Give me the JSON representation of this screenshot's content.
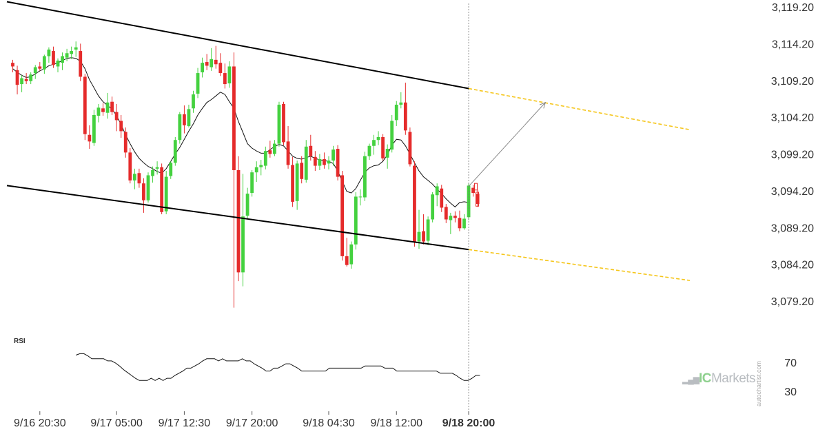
{
  "chart_data": {
    "type": "candlestick",
    "price_axis": {
      "ticks": [
        "3,119.20",
        "3,114.20",
        "3,109.20",
        "3,104.20",
        "3,099.20",
        "3,094.20",
        "3,089.20",
        "3,084.20",
        "3,079.20"
      ],
      "ylim": [
        3074.7,
        3120.2
      ]
    },
    "time_axis": {
      "ticks": [
        {
          "label": "9/16 20:30",
          "index": 6,
          "bold": false
        },
        {
          "label": "9/17 05:00",
          "index": 23,
          "bold": false
        },
        {
          "label": "9/17 12:30",
          "index": 38,
          "bold": false
        },
        {
          "label": "9/17 20:00",
          "index": 53,
          "bold": false
        },
        {
          "label": "9/18 04:30",
          "index": 70,
          "bold": false
        },
        {
          "label": "9/18 12:00",
          "index": 85,
          "bold": false
        },
        {
          "label": "9/18 20:00",
          "index": 101,
          "bold": true
        }
      ]
    },
    "colors": {
      "up": "#44d13f",
      "down": "#e52b2b",
      "ma": "#111111",
      "channel": "#000000",
      "projection": "#f5c518",
      "arrow": "#888888",
      "rsi": "#111111",
      "marker": "#888888"
    },
    "candles": [
      [
        3111.6,
        3112.0,
        3110.3,
        3111.1
      ],
      [
        3110.6,
        3111.2,
        3107.3,
        3108.6
      ],
      [
        3108.7,
        3109.9,
        3107.6,
        3109.5
      ],
      [
        3109.4,
        3110.2,
        3108.7,
        3109.1
      ],
      [
        3109.1,
        3110.3,
        3108.7,
        3110.0
      ],
      [
        3110.2,
        3111.3,
        3109.4,
        3111.0
      ],
      [
        3111.1,
        3111.7,
        3110.5,
        3110.8
      ],
      [
        3110.7,
        3112.7,
        3110.1,
        3112.5
      ],
      [
        3112.5,
        3113.7,
        3111.6,
        3113.4
      ],
      [
        3113.2,
        3113.8,
        3110.9,
        3111.3
      ],
      [
        3111.1,
        3112.2,
        3110.3,
        3111.9
      ],
      [
        3111.6,
        3113.0,
        3110.6,
        3112.5
      ],
      [
        3112.3,
        3113.5,
        3111.8,
        3112.9
      ],
      [
        3112.8,
        3113.8,
        3112.1,
        3113.2
      ],
      [
        3113.4,
        3114.5,
        3112.4,
        3113.7
      ],
      [
        3113.2,
        3114.2,
        3109.1,
        3109.7
      ],
      [
        3109.7,
        3110.1,
        3101.1,
        3101.9
      ],
      [
        3101.8,
        3103.1,
        3099.9,
        3100.9
      ],
      [
        3100.7,
        3105.2,
        3100.3,
        3104.5
      ],
      [
        3104.4,
        3106.0,
        3103.5,
        3105.5
      ],
      [
        3105.4,
        3106.1,
        3104.4,
        3104.9
      ],
      [
        3104.8,
        3107.5,
        3104.0,
        3106.2
      ],
      [
        3106.3,
        3107.0,
        3104.5,
        3104.9
      ],
      [
        3104.9,
        3106.0,
        3102.3,
        3103.8
      ],
      [
        3103.7,
        3104.5,
        3101.4,
        3102.3
      ],
      [
        3102.2,
        3102.8,
        3098.7,
        3099.4
      ],
      [
        3099.4,
        3100.0,
        3095.2,
        3095.6
      ],
      [
        3095.6,
        3097.2,
        3094.4,
        3096.5
      ],
      [
        3096.6,
        3097.2,
        3094.6,
        3095.2
      ],
      [
        3095.2,
        3095.9,
        3091.2,
        3092.9
      ],
      [
        3092.9,
        3096.7,
        3092.6,
        3096.3
      ],
      [
        3096.2,
        3097.5,
        3095.3,
        3097.0
      ],
      [
        3097.2,
        3098.2,
        3096.4,
        3097.4
      ],
      [
        3097.4,
        3097.9,
        3091.0,
        3091.3
      ],
      [
        3091.4,
        3096.9,
        3091.0,
        3096.1
      ],
      [
        3096.2,
        3098.2,
        3095.8,
        3098.0
      ],
      [
        3098.0,
        3101.5,
        3097.6,
        3101.1
      ],
      [
        3101.1,
        3104.9,
        3100.6,
        3104.6
      ],
      [
        3104.6,
        3105.8,
        3102.0,
        3103.1
      ],
      [
        3103.0,
        3105.9,
        3102.8,
        3105.3
      ],
      [
        3105.4,
        3107.8,
        3104.8,
        3107.3
      ],
      [
        3107.4,
        3110.9,
        3106.8,
        3110.2
      ],
      [
        3110.3,
        3112.3,
        3109.6,
        3111.6
      ],
      [
        3111.7,
        3112.8,
        3110.6,
        3111.2
      ],
      [
        3111.0,
        3113.6,
        3110.5,
        3112.1
      ],
      [
        3112.0,
        3113.9,
        3110.8,
        3111.4
      ],
      [
        3111.6,
        3112.9,
        3109.8,
        3110.2
      ],
      [
        3110.2,
        3111.5,
        3108.1,
        3108.7
      ],
      [
        3108.8,
        3111.8,
        3108.2,
        3111.1
      ],
      [
        3111.1,
        3113.0,
        3078.3,
        3097.0
      ],
      [
        3097.0,
        3098.9,
        3081.9,
        3083.1
      ],
      [
        3083.1,
        3096.5,
        3081.2,
        3090.7
      ],
      [
        3090.8,
        3094.6,
        3090.4,
        3093.8
      ],
      [
        3093.9,
        3097.0,
        3093.4,
        3096.7
      ],
      [
        3096.7,
        3098.2,
        3095.4,
        3097.4
      ],
      [
        3097.4,
        3098.4,
        3096.3,
        3097.7
      ],
      [
        3097.6,
        3100.2,
        3097.1,
        3099.6
      ],
      [
        3099.7,
        3101.0,
        3098.7,
        3099.2
      ],
      [
        3099.2,
        3101.1,
        3098.9,
        3100.6
      ],
      [
        3100.6,
        3106.3,
        3100.2,
        3105.9
      ],
      [
        3106.0,
        3106.3,
        3100.4,
        3100.8
      ],
      [
        3100.9,
        3103.0,
        3097.2,
        3097.7
      ],
      [
        3097.7,
        3098.8,
        3092.0,
        3092.7
      ],
      [
        3092.8,
        3098.3,
        3091.6,
        3097.9
      ],
      [
        3098.0,
        3098.9,
        3095.2,
        3095.8
      ],
      [
        3095.7,
        3101.1,
        3095.3,
        3100.2
      ],
      [
        3100.3,
        3101.8,
        3098.3,
        3098.9
      ],
      [
        3098.8,
        3099.6,
        3096.9,
        3097.6
      ],
      [
        3097.6,
        3099.2,
        3097.0,
        3098.5
      ],
      [
        3098.5,
        3099.4,
        3097.2,
        3097.7
      ],
      [
        3097.9,
        3098.9,
        3097.1,
        3098.3
      ],
      [
        3098.3,
        3100.3,
        3097.6,
        3099.8
      ],
      [
        3099.9,
        3100.4,
        3095.6,
        3096.1
      ],
      [
        3096.3,
        3096.9,
        3084.7,
        3085.3
      ],
      [
        3085.3,
        3087.8,
        3083.9,
        3084.1
      ],
      [
        3084.2,
        3087.3,
        3083.6,
        3086.9
      ],
      [
        3086.9,
        3094.0,
        3086.2,
        3093.4
      ],
      [
        3093.4,
        3094.4,
        3092.2,
        3093.4
      ],
      [
        3093.3,
        3099.5,
        3092.8,
        3098.9
      ],
      [
        3098.9,
        3100.6,
        3098.4,
        3100.3
      ],
      [
        3100.3,
        3101.8,
        3099.1,
        3101.1
      ],
      [
        3101.1,
        3102.3,
        3100.4,
        3101.5
      ],
      [
        3101.5,
        3101.9,
        3098.3,
        3098.6
      ],
      [
        3098.7,
        3100.5,
        3097.2,
        3099.9
      ],
      [
        3099.8,
        3104.5,
        3099.4,
        3103.7
      ],
      [
        3103.8,
        3106.4,
        3103.0,
        3105.9
      ],
      [
        3105.9,
        3107.6,
        3105.4,
        3106.2
      ],
      [
        3106.2,
        3108.9,
        3101.8,
        3102.4
      ],
      [
        3102.2,
        3102.8,
        3097.5,
        3097.8
      ],
      [
        3097.6,
        3098.2,
        3086.6,
        3087.2
      ],
      [
        3087.3,
        3091.6,
        3086.3,
        3088.6
      ],
      [
        3088.7,
        3091.0,
        3086.9,
        3087.3
      ],
      [
        3087.4,
        3090.7,
        3086.8,
        3090.3
      ],
      [
        3090.3,
        3094.0,
        3089.9,
        3093.7
      ],
      [
        3093.6,
        3095.2,
        3092.1,
        3094.8
      ],
      [
        3094.5,
        3095.0,
        3091.3,
        3091.9
      ],
      [
        3092.0,
        3092.4,
        3089.8,
        3090.3
      ],
      [
        3090.2,
        3091.2,
        3088.3,
        3090.8
      ],
      [
        3090.8,
        3091.4,
        3089.9,
        3090.5
      ],
      [
        3090.5,
        3091.5,
        3088.7,
        3089.1
      ],
      [
        3089.1,
        3091.0,
        3088.9,
        3090.4
      ],
      [
        3090.6,
        3095.2,
        3090.2,
        3094.9
      ],
      [
        3094.6,
        3095.0,
        3093.4,
        3093.9
      ],
      [
        3093.8,
        3094.3,
        3092.0,
        3092.4
      ]
    ],
    "moving_average": [
      3110.8,
      3110.3,
      3109.9,
      3109.6,
      3109.7,
      3110.1,
      3110.5,
      3110.8,
      3111.2,
      3111.4,
      3111.6,
      3111.9,
      3112.2,
      3112.3,
      3112.2,
      3111.8,
      3110.8,
      3109.3,
      3108.2,
      3107.1,
      3106.3,
      3105.8,
      3105.3,
      3104.4,
      3103.2,
      3101.8,
      3100.6,
      3099.5,
      3098.6,
      3098.0,
      3097.5,
      3097.2,
      3096.8,
      3096.6,
      3097.2,
      3098.2,
      3099.2,
      3100.1,
      3101.2,
      3102.3,
      3103.3,
      3104.5,
      3105.4,
      3106.2,
      3106.6,
      3107.1,
      3107.6,
      3107.3,
      3106.3,
      3105.4,
      3103.6,
      3102.1,
      3100.6,
      3100.0,
      3099.6,
      3099.3,
      3099.3,
      3099.8,
      3100.2,
      3100.5,
      3100.3,
      3099.6,
      3098.9,
      3098.6,
      3098.5,
      3098.7,
      3098.9,
      3098.6,
      3098.4,
      3098.3,
      3098.2,
      3097.9,
      3096.9,
      3095.5,
      3094.1,
      3093.9,
      3094.5,
      3095.6,
      3096.7,
      3097.3,
      3097.6,
      3097.7,
      3098.2,
      3099.1,
      3100.4,
      3101.2,
      3101.1,
      3100.3,
      3099.2,
      3098.0,
      3096.9,
      3096.1,
      3095.6,
      3095.1,
      3094.4,
      3093.8,
      3093.1,
      3092.5,
      3092.0,
      3092.6,
      3092.7,
      3092.6
    ],
    "channel": {
      "upper": {
        "start": {
          "index": -1.3,
          "value": 3119.9
        },
        "end": {
          "index": 101,
          "value": 3108.1
        }
      },
      "lower": {
        "start": {
          "index": -1.3,
          "value": 3094.9
        },
        "end": {
          "index": 101,
          "value": 3086.2
        }
      }
    },
    "projection": {
      "upper": {
        "start": {
          "index": 101,
          "value": 3108.1
        },
        "end": {
          "index": 150,
          "value": 3102.5
        }
      },
      "lower": {
        "start": {
          "index": 101,
          "value": 3086.2
        },
        "end": {
          "index": 150,
          "value": 3082.0
        }
      }
    },
    "forecast_arrow": {
      "start": {
        "index": 101,
        "value": 3094.8
      },
      "end": {
        "index": 118,
        "value": 3106.2
      }
    },
    "current_time_index": 101,
    "rsi": {
      "title": "RSI",
      "levels": [
        70,
        30
      ],
      "level_labels": [
        "70",
        "30"
      ],
      "values": [
        80,
        82,
        82,
        79,
        75,
        75,
        75,
        75,
        72,
        72,
        69,
        65,
        60,
        56,
        52,
        48,
        45,
        45,
        45,
        48,
        45,
        48,
        45,
        48,
        48,
        52,
        55,
        58,
        62,
        62,
        65,
        68,
        72,
        75,
        75,
        75,
        72,
        75,
        72,
        72,
        72,
        72,
        75,
        72,
        72,
        68,
        65,
        62,
        58,
        58,
        62,
        62,
        65,
        68,
        68,
        65,
        62,
        58,
        58,
        58,
        58,
        58,
        58,
        58,
        62,
        62,
        62,
        62,
        62,
        62,
        62,
        62,
        62,
        65,
        65,
        65,
        65,
        65,
        62,
        62,
        62,
        58,
        58,
        58,
        58,
        58,
        58,
        58,
        58,
        58,
        58,
        58,
        55,
        55,
        55,
        55,
        52,
        48,
        45,
        45,
        48,
        52,
        52
      ],
      "ylim": [
        0,
        100
      ]
    }
  },
  "branding": {
    "bars": "▂▄▆",
    "ic": "IC",
    "markets": "Markets",
    "credit": "autochartist.com"
  }
}
